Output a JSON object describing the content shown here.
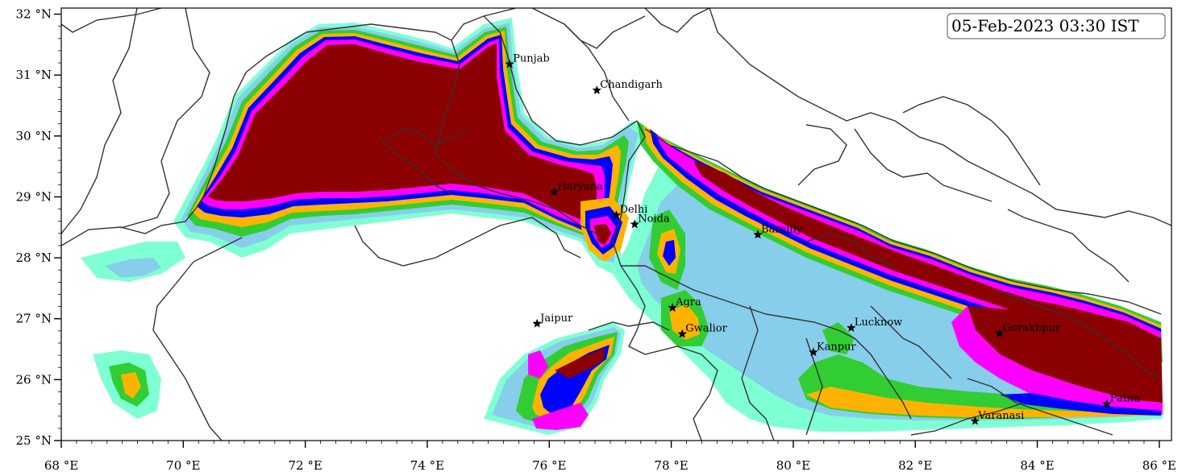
{
  "timestamp": "05-Feb-2023 03:30 IST",
  "map": {
    "lon_range": [
      68,
      86.2
    ],
    "lat_range": [
      25,
      32.1
    ],
    "x_ticks": [
      {
        "value": 68,
        "label": "68 °E"
      },
      {
        "value": 70,
        "label": "70 °E"
      },
      {
        "value": 72,
        "label": "72 °E"
      },
      {
        "value": 74,
        "label": "74 °E"
      },
      {
        "value": 76,
        "label": "76 °E"
      },
      {
        "value": 78,
        "label": "78 °E"
      },
      {
        "value": 80,
        "label": "80 °E"
      },
      {
        "value": 82,
        "label": "82 °E"
      },
      {
        "value": 84,
        "label": "84 °E"
      },
      {
        "value": 86,
        "label": "86 °E"
      }
    ],
    "y_ticks": [
      {
        "value": 25,
        "label": "25 °N"
      },
      {
        "value": 26,
        "label": "26 °N"
      },
      {
        "value": 27,
        "label": "27 °N"
      },
      {
        "value": 28,
        "label": "28 °N"
      },
      {
        "value": 29,
        "label": "29 °N"
      },
      {
        "value": 30,
        "label": "30 °N"
      },
      {
        "value": 31,
        "label": "31 °N"
      },
      {
        "value": 32,
        "label": "32 °N"
      }
    ],
    "contour_colors": [
      "#7fffd4",
      "#87ceeb",
      "#32cd32",
      "#ffb300",
      "#0000ff",
      "#ff00ff",
      "#8b0000"
    ],
    "cities": [
      {
        "name": "Punjab",
        "lon": 75.35,
        "lat": 31.18
      },
      {
        "name": "Chandigarh",
        "lon": 76.78,
        "lat": 30.75
      },
      {
        "name": "Haryana",
        "lon": 76.08,
        "lat": 29.08
      },
      {
        "name": "Delhi",
        "lon": 77.1,
        "lat": 28.7
      },
      {
        "name": "Noida",
        "lon": 77.4,
        "lat": 28.55
      },
      {
        "name": "Bareilly",
        "lon": 79.42,
        "lat": 28.38
      },
      {
        "name": "Jaipur",
        "lon": 75.8,
        "lat": 26.92
      },
      {
        "name": "Agra",
        "lon": 78.02,
        "lat": 27.18
      },
      {
        "name": "Gwalior",
        "lon": 78.18,
        "lat": 26.75
      },
      {
        "name": "Lucknow",
        "lon": 80.95,
        "lat": 26.85
      },
      {
        "name": "Kanpur",
        "lon": 80.33,
        "lat": 26.45
      },
      {
        "name": "Gorakhpur",
        "lon": 83.38,
        "lat": 26.76
      },
      {
        "name": "Varanasi",
        "lon": 82.98,
        "lat": 25.32
      },
      {
        "name": "Patna",
        "lon": 85.14,
        "lat": 25.6
      }
    ]
  }
}
